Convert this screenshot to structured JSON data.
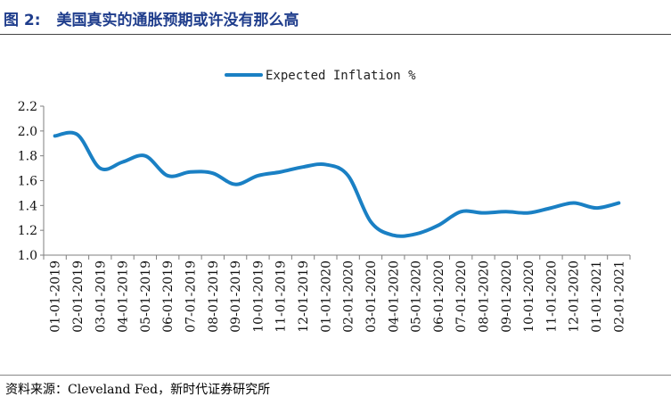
{
  "header": {
    "figure_number": "图 2:",
    "title": "美国真实的通胀预期或许没有那么高"
  },
  "footer": {
    "source": "资料来源：Cleveland Fed，新时代证券研究所"
  },
  "colors": {
    "series": "#1a80c4",
    "title": "#1f3d8c",
    "axis": "#7f7f7f"
  },
  "chart_data": {
    "type": "line",
    "title": "美国真实的通胀预期或许没有那么高",
    "legend_position": "top-center",
    "xlabel": "",
    "ylabel": "",
    "ylim": [
      1.0,
      2.2
    ],
    "yticks": [
      "1.0",
      "1.2",
      "1.4",
      "1.6",
      "1.8",
      "2.0",
      "2.2"
    ],
    "ytick_values": [
      1.0,
      1.2,
      1.4,
      1.6,
      1.8,
      2.0,
      2.2
    ],
    "categories": [
      "01-01-2019",
      "02-01-2019",
      "03-01-2019",
      "04-01-2019",
      "05-01-2019",
      "06-01-2019",
      "07-01-2019",
      "08-01-2019",
      "09-01-2019",
      "10-01-2019",
      "11-01-2019",
      "12-01-2019",
      "01-01-2020",
      "02-01-2020",
      "03-01-2020",
      "04-01-2020",
      "05-01-2020",
      "06-01-2020",
      "07-01-2020",
      "08-01-2020",
      "09-01-2020",
      "10-01-2020",
      "11-01-2020",
      "12-01-2020",
      "01-01-2021",
      "02-01-2021"
    ],
    "series": [
      {
        "name": "Expected Inflation %",
        "values": [
          1.96,
          1.97,
          1.7,
          1.75,
          1.8,
          1.64,
          1.67,
          1.66,
          1.57,
          1.64,
          1.67,
          1.71,
          1.73,
          1.64,
          1.27,
          1.16,
          1.17,
          1.24,
          1.35,
          1.34,
          1.35,
          1.34,
          1.38,
          1.42,
          1.38,
          1.42
        ]
      }
    ]
  }
}
